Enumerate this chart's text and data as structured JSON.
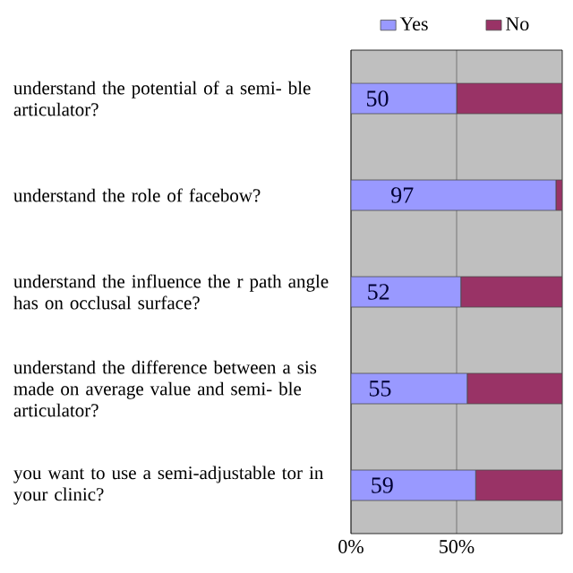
{
  "chart_data": {
    "type": "bar",
    "orientation": "horizontal",
    "stacked": true,
    "categories": [
      "understand the potential of a semi- ble articulator?",
      "understand the role of facebow?",
      "understand the influence the r path angle has on occlusal surface?",
      "understand the difference between a sis made on average value and semi- ble articulator?",
      "you want to use a semi-adjustable tor in your clinic?"
    ],
    "series": [
      {
        "name": "Yes",
        "color": "#9999ff",
        "values": [
          50,
          97,
          52,
          55,
          59
        ],
        "value_labels": [
          "50",
          "97",
          "52",
          "55",
          "59"
        ]
      },
      {
        "name": "No",
        "color": "#993366",
        "values": [
          50,
          3,
          48,
          45,
          41
        ]
      }
    ],
    "xlim": [
      0,
      100
    ],
    "xticks": [
      {
        "value": 0,
        "label": "0%"
      },
      {
        "value": 50,
        "label": "50%"
      }
    ],
    "grid": "x",
    "legend": "top"
  }
}
